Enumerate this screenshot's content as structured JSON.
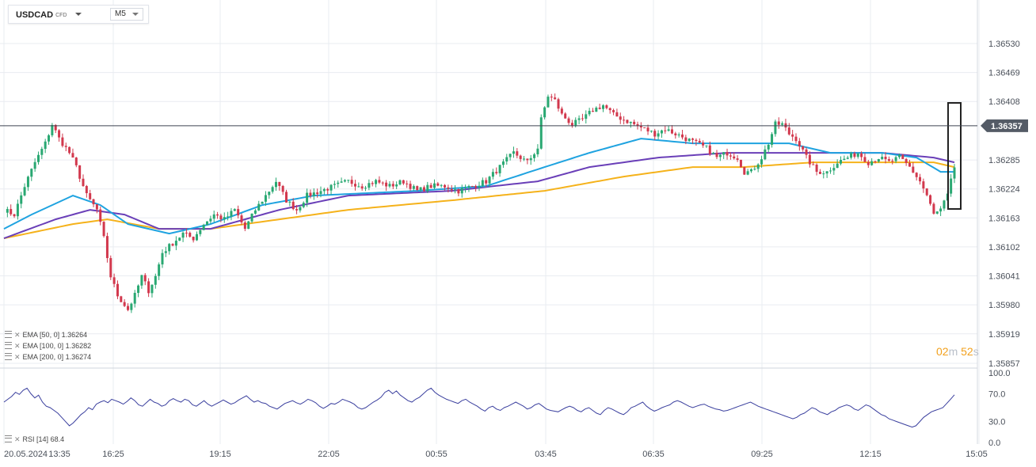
{
  "header": {
    "symbol": "USDCAD",
    "instrument_type": "CFD",
    "timeframe": "M5"
  },
  "legend": [
    {
      "icon": "menu-lines-icon",
      "close": "✕",
      "text": "EMA [50,  0]",
      "value": "1.36264"
    },
    {
      "icon": "menu-lines-icon",
      "close": "✕",
      "text": "EMA [100,  0]",
      "value": "1.36282"
    },
    {
      "icon": "menu-lines-icon",
      "close": "✕",
      "text": "EMA [200,  0]",
      "value": "1.36274"
    }
  ],
  "rsi_legend": {
    "icon": "menu-lines-icon",
    "close": "✕",
    "text": "RSI [14]",
    "value": "68.4"
  },
  "countdown": {
    "minutes": "02",
    "m": "m",
    "seconds": "52",
    "s": "s"
  },
  "colors": {
    "up": "#29a872",
    "down": "#d2384d",
    "ema50": "#1fa3e0",
    "ema100": "#6a3fb8",
    "ema200": "#f5b21b",
    "rsi": "#3a3f9e",
    "price_tag": "#545b66"
  },
  "chart_data": {
    "type": "candlestick",
    "symbol": "USDCAD",
    "timeframe": "M5",
    "current_price": "1.36357",
    "price_axis_ticks": [
      "1.36530",
      "1.36469",
      "1.36408",
      "1.36285",
      "1.36224",
      "1.36163",
      "1.36102",
      "1.36041",
      "1.35980",
      "1.35919",
      "1.35857"
    ],
    "time_axis_ticks": [
      "20.05.2024",
      "13:35",
      "16:25",
      "19:15",
      "22:05",
      "00:55",
      "03:45",
      "06:35",
      "09:25",
      "12:15",
      "15:05"
    ],
    "ylim": [
      1.35857,
      1.3653
    ],
    "close_path": [
      [
        0,
        1.3618
      ],
      [
        3,
        1.3617
      ],
      [
        6,
        1.3623
      ],
      [
        9,
        1.3628
      ],
      [
        12,
        1.3632
      ],
      [
        14,
        1.3636
      ],
      [
        16,
        1.3633
      ],
      [
        19,
        1.363
      ],
      [
        21,
        1.3627
      ],
      [
        24,
        1.3621
      ],
      [
        27,
        1.3618
      ],
      [
        29,
        1.3612
      ],
      [
        31,
        1.3604
      ],
      [
        33,
        1.36
      ],
      [
        36,
        1.3597
      ],
      [
        38,
        1.36
      ],
      [
        40,
        1.3604
      ],
      [
        42,
        1.3601
      ],
      [
        44,
        1.3604
      ],
      [
        46,
        1.3609
      ],
      [
        49,
        1.3611
      ],
      [
        52,
        1.3613
      ],
      [
        55,
        1.3612
      ],
      [
        58,
        1.3615
      ],
      [
        61,
        1.3617
      ],
      [
        64,
        1.3616
      ],
      [
        67,
        1.3618
      ],
      [
        70,
        1.3614
      ],
      [
        73,
        1.3618
      ],
      [
        76,
        1.3621
      ],
      [
        79,
        1.3624
      ],
      [
        82,
        1.362
      ],
      [
        85,
        1.3618
      ],
      [
        88,
        1.3621
      ],
      [
        92,
        1.3622
      ],
      [
        96,
        1.3623
      ],
      [
        100,
        1.3624
      ],
      [
        104,
        1.3623
      ],
      [
        108,
        1.3624
      ],
      [
        112,
        1.3623
      ],
      [
        116,
        1.3624
      ],
      [
        120,
        1.3622
      ],
      [
        124,
        1.3623
      ],
      [
        128,
        1.3623
      ],
      [
        132,
        1.3622
      ],
      [
        136,
        1.3623
      ],
      [
        140,
        1.3624
      ],
      [
        144,
        1.3627
      ],
      [
        148,
        1.363
      ],
      [
        152,
        1.3628
      ],
      [
        155,
        1.3631
      ],
      [
        156,
        1.3637
      ],
      [
        158,
        1.3642
      ],
      [
        160,
        1.3641
      ],
      [
        162,
        1.3638
      ],
      [
        165,
        1.3636
      ],
      [
        168,
        1.3637
      ],
      [
        171,
        1.3639
      ],
      [
        174,
        1.364
      ],
      [
        177,
        1.3638
      ],
      [
        180,
        1.3637
      ],
      [
        183,
        1.3636
      ],
      [
        186,
        1.3635
      ],
      [
        189,
        1.3634
      ],
      [
        192,
        1.3635
      ],
      [
        195,
        1.3634
      ],
      [
        198,
        1.3633
      ],
      [
        201,
        1.3632
      ],
      [
        204,
        1.3631
      ],
      [
        207,
        1.3629
      ],
      [
        210,
        1.363
      ],
      [
        213,
        1.3629
      ],
      [
        215,
        1.3626
      ],
      [
        217,
        1.3626
      ],
      [
        220,
        1.3629
      ],
      [
        222,
        1.3632
      ],
      [
        224,
        1.3636
      ],
      [
        226,
        1.3636
      ],
      [
        228,
        1.3634
      ],
      [
        230,
        1.3633
      ],
      [
        233,
        1.3629
      ],
      [
        236,
        1.3626
      ],
      [
        239,
        1.3626
      ],
      [
        242,
        1.3628
      ],
      [
        245,
        1.3629
      ],
      [
        248,
        1.363
      ],
      [
        251,
        1.3628
      ],
      [
        254,
        1.3629
      ],
      [
        257,
        1.3628
      ],
      [
        260,
        1.3629
      ],
      [
        263,
        1.3627
      ],
      [
        266,
        1.3624
      ],
      [
        268,
        1.3621
      ],
      [
        270,
        1.3617
      ],
      [
        272,
        1.3618
      ],
      [
        274,
        1.3621
      ],
      [
        276,
        1.3627
      ]
    ],
    "ema200_path": [
      [
        0,
        1.3612
      ],
      [
        20,
        1.3615
      ],
      [
        30,
        1.3616
      ],
      [
        45,
        1.3614
      ],
      [
        60,
        1.3614
      ],
      [
        80,
        1.3616
      ],
      [
        100,
        1.3618
      ],
      [
        130,
        1.362
      ],
      [
        157,
        1.3622
      ],
      [
        180,
        1.3625
      ],
      [
        200,
        1.3627
      ],
      [
        215,
        1.3627
      ],
      [
        235,
        1.3628
      ],
      [
        255,
        1.3628
      ],
      [
        270,
        1.3628
      ],
      [
        276,
        1.3627
      ]
    ],
    "ema100_path": [
      [
        0,
        1.3612
      ],
      [
        15,
        1.3616
      ],
      [
        25,
        1.3618
      ],
      [
        35,
        1.3617
      ],
      [
        45,
        1.3614
      ],
      [
        60,
        1.3614
      ],
      [
        80,
        1.3618
      ],
      [
        100,
        1.3621
      ],
      [
        130,
        1.3622
      ],
      [
        155,
        1.3624
      ],
      [
        170,
        1.3627
      ],
      [
        190,
        1.3629
      ],
      [
        210,
        1.363
      ],
      [
        235,
        1.363
      ],
      [
        255,
        1.363
      ],
      [
        270,
        1.3629
      ],
      [
        276,
        1.3628
      ]
    ],
    "ema50_path": [
      [
        0,
        1.3614
      ],
      [
        8,
        1.3617
      ],
      [
        20,
        1.3621
      ],
      [
        28,
        1.3619
      ],
      [
        36,
        1.3615
      ],
      [
        48,
        1.3613
      ],
      [
        60,
        1.3615
      ],
      [
        75,
        1.3619
      ],
      [
        90,
        1.3621
      ],
      [
        120,
        1.3622
      ],
      [
        140,
        1.3623
      ],
      [
        157,
        1.3627
      ],
      [
        170,
        1.363
      ],
      [
        185,
        1.3633
      ],
      [
        200,
        1.3632
      ],
      [
        215,
        1.3632
      ],
      [
        228,
        1.3632
      ],
      [
        240,
        1.363
      ],
      [
        255,
        1.363
      ],
      [
        265,
        1.3629
      ],
      [
        272,
        1.3626
      ],
      [
        276,
        1.3626
      ]
    ],
    "rsi": {
      "name": "RSI [14]",
      "ylim": [
        0,
        100
      ],
      "ticks": [
        "100.0",
        "70.0",
        "30.0",
        "0.0"
      ],
      "last_value": 68.4,
      "values": [
        58,
        62,
        66,
        72,
        69,
        75,
        78,
        70,
        64,
        68,
        58,
        52,
        50,
        46,
        42,
        36,
        30,
        24,
        28,
        34,
        40,
        44,
        50,
        47,
        55,
        58,
        60,
        57,
        62,
        60,
        58,
        55,
        59,
        64,
        60,
        54,
        52,
        57,
        62,
        58,
        56,
        52,
        54,
        60,
        63,
        60,
        58,
        62,
        60,
        54,
        52,
        56,
        60,
        55,
        52,
        55,
        58,
        61,
        58,
        55,
        57,
        61,
        64,
        67,
        62,
        58,
        60,
        57,
        56,
        52,
        50,
        48,
        52,
        56,
        58,
        60,
        57,
        55,
        58,
        62,
        60,
        57,
        52,
        49,
        52,
        56,
        55,
        58,
        62,
        60,
        58,
        55,
        50,
        48,
        50,
        54,
        58,
        61,
        65,
        72,
        75,
        70,
        74,
        68,
        64,
        60,
        58,
        62,
        65,
        70,
        75,
        78,
        72,
        68,
        65,
        62,
        60,
        58,
        56,
        60,
        62,
        58,
        55,
        52,
        48,
        45,
        50,
        52,
        48,
        46,
        50,
        52,
        55,
        58,
        55,
        52,
        48,
        50,
        54,
        56,
        52,
        48,
        46,
        45,
        44,
        47,
        50,
        52,
        50,
        46,
        44,
        48,
        50,
        46,
        42,
        40,
        46,
        50,
        48,
        45,
        42,
        40,
        44,
        50,
        52,
        55,
        58,
        52,
        48,
        45,
        47,
        50,
        52,
        54,
        58,
        60,
        58,
        55,
        52,
        50,
        52,
        54,
        55,
        52,
        50,
        48,
        47,
        45,
        46,
        48,
        50,
        52,
        54,
        56,
        58,
        55,
        52,
        50,
        48,
        46,
        44,
        42,
        40,
        38,
        36,
        34,
        36,
        40,
        42,
        46,
        50,
        48,
        44,
        42,
        40,
        44,
        46,
        50,
        52,
        54,
        52,
        48,
        46,
        50,
        54,
        52,
        48,
        44,
        40,
        38,
        34,
        32,
        30,
        28,
        26,
        24,
        22,
        24,
        30,
        36,
        40,
        44,
        46,
        48,
        50,
        56,
        62,
        68.4
      ]
    }
  }
}
